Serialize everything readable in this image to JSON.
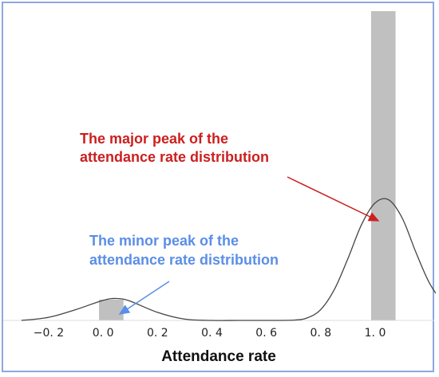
{
  "chart_data": {
    "type": "histogram_density",
    "xlabel": "Attendance rate",
    "ylabel": "",
    "title": "",
    "xlim": [
      -0.3,
      1.3
    ],
    "x_ticks": [
      {
        "value": -0.2,
        "label": "−0. 2"
      },
      {
        "value": 0.0,
        "label": "0. 0"
      },
      {
        "value": 0.2,
        "label": "0. 2"
      },
      {
        "value": 0.4,
        "label": "0. 4"
      },
      {
        "value": 0.6,
        "label": "0. 6"
      },
      {
        "value": 0.8,
        "label": "0. 8"
      },
      {
        "value": 1.0,
        "label": "1. 0"
      }
    ],
    "bars": [
      {
        "x_start": -0.015,
        "x_end": 0.075,
        "height": 0.067
      },
      {
        "x_start": 0.985,
        "x_end": 1.075,
        "height": 1.0
      }
    ],
    "density_curve": {
      "x": [
        -0.3,
        -0.2,
        -0.1,
        0.0,
        0.05,
        0.1,
        0.2,
        0.3,
        0.4,
        0.5,
        0.6,
        0.7,
        0.75,
        0.8,
        0.85,
        0.9,
        0.95,
        1.0,
        1.05,
        1.1,
        1.15,
        1.2,
        1.25,
        1.3
      ],
      "y": [
        0.0,
        0.01,
        0.035,
        0.065,
        0.071,
        0.062,
        0.026,
        0.004,
        0.0,
        0.0,
        0.0,
        0.001,
        0.008,
        0.035,
        0.1,
        0.2,
        0.31,
        0.38,
        0.39,
        0.33,
        0.22,
        0.12,
        0.06,
        0.03
      ]
    },
    "colors": {
      "bars": "#c0c0c0",
      "curve": "#444444",
      "major_annotation": "#cc1f1f",
      "minor_annotation": "#5b8ee6",
      "frame": "#8fa6e0"
    },
    "grid": false,
    "legend": "none"
  },
  "annotations": {
    "major": {
      "line1": "The major peak of the",
      "line2": "attendance rate distribution"
    },
    "minor": {
      "line1": "The minor peak of the",
      "line2": "attendance rate distribution"
    }
  }
}
